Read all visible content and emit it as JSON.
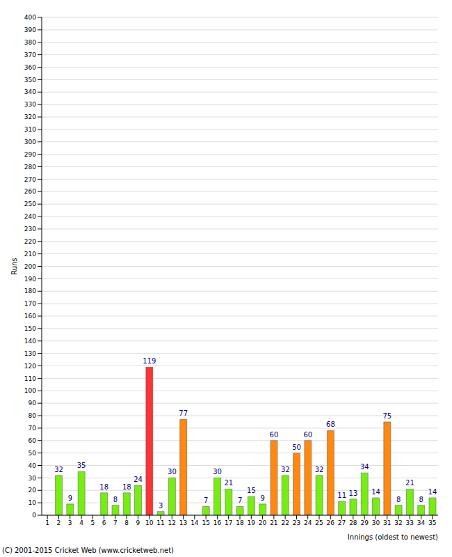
{
  "chart_data": {
    "type": "bar",
    "categories": [
      "1",
      "2",
      "3",
      "4",
      "5",
      "6",
      "7",
      "8",
      "9",
      "10",
      "11",
      "12",
      "13",
      "14",
      "15",
      "16",
      "17",
      "18",
      "19",
      "20",
      "21",
      "22",
      "23",
      "24",
      "25",
      "26",
      "27",
      "28",
      "29",
      "30",
      "31",
      "32",
      "33",
      "34",
      "35"
    ],
    "values": [
      0,
      32,
      9,
      35,
      0,
      18,
      8,
      18,
      24,
      119,
      3,
      30,
      77,
      0,
      7,
      30,
      21,
      7,
      15,
      9,
      60,
      32,
      50,
      60,
      32,
      68,
      11,
      13,
      34,
      14,
      75,
      8,
      21,
      8,
      14
    ],
    "colors": [
      "#77ee11",
      "#77ee11",
      "#77ee11",
      "#77ee11",
      "#77ee11",
      "#77ee11",
      "#77ee11",
      "#77ee11",
      "#77ee11",
      "#ff3333",
      "#77ee11",
      "#77ee11",
      "#ff8811",
      "#77ee11",
      "#77ee11",
      "#77ee11",
      "#77ee11",
      "#77ee11",
      "#77ee11",
      "#77ee11",
      "#ff8811",
      "#77ee11",
      "#ff8811",
      "#ff8811",
      "#77ee11",
      "#ff8811",
      "#77ee11",
      "#77ee11",
      "#77ee11",
      "#77ee11",
      "#ff8811",
      "#77ee11",
      "#77ee11",
      "#77ee11",
      "#77ee11"
    ],
    "x_label": "Innings (oldest to newest)",
    "y_label": "Runs",
    "annotations": [
      "(C) 2001-2015 Cricket Web (www.cricketweb.net)"
    ],
    "ylim": [
      0,
      400
    ],
    "yticks": [
      0,
      10,
      20,
      30,
      40,
      50,
      60,
      70,
      80,
      90,
      100,
      110,
      120,
      130,
      140,
      150,
      160,
      170,
      180,
      190,
      200,
      210,
      220,
      230,
      240,
      250,
      260,
      270,
      280,
      290,
      300,
      310,
      320,
      330,
      340,
      350,
      360,
      370,
      380,
      390,
      400
    ],
    "grid": true,
    "data_labels": true
  }
}
